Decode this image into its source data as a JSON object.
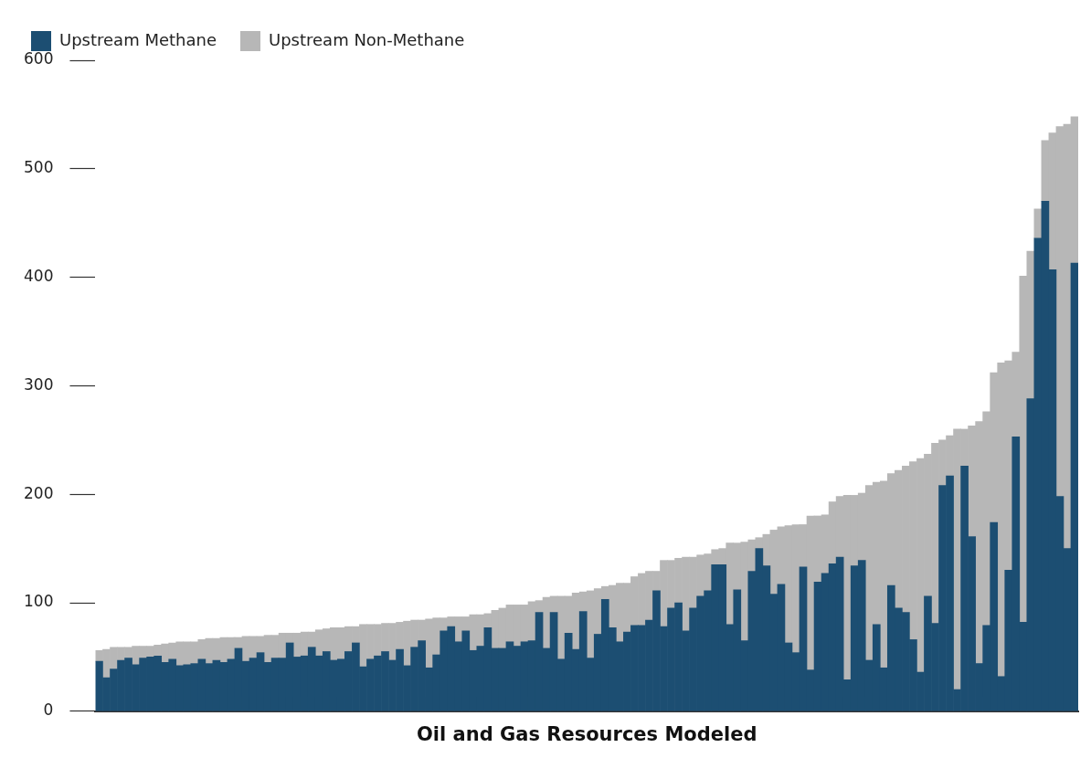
{
  "chart_data": {
    "type": "bar",
    "stacked": true,
    "xlabel": "Oil and Gas Resources Modeled",
    "ylim": [
      0,
      600
    ],
    "yticks": [
      0,
      100,
      200,
      300,
      400,
      500,
      600
    ],
    "grid": false,
    "legend": "top left",
    "tick_labels": "y",
    "categories": [
      null,
      null,
      null,
      null,
      null,
      null,
      null,
      null,
      null,
      null,
      null,
      null,
      null,
      null,
      null,
      null,
      null,
      null,
      null,
      null,
      null,
      null,
      null,
      null,
      null,
      null,
      null,
      null,
      null,
      null,
      null,
      null,
      null,
      null,
      null,
      null,
      null,
      null,
      null,
      null,
      null,
      null,
      null,
      null,
      null,
      null,
      null,
      null,
      null,
      null,
      null,
      null,
      null,
      null,
      null,
      null,
      null,
      null,
      null,
      null,
      null,
      null,
      null,
      null,
      null,
      null,
      null,
      null,
      null,
      null,
      null,
      null,
      null,
      null,
      null,
      null,
      null,
      null,
      null,
      null,
      null,
      null,
      null,
      null,
      null,
      null,
      null,
      null,
      null,
      null,
      null,
      null,
      null,
      null,
      null,
      null,
      null,
      null,
      null,
      null,
      null,
      null,
      null,
      null,
      null,
      null,
      null,
      null,
      null,
      null,
      null,
      null,
      null,
      null,
      null,
      null,
      null,
      null,
      null,
      null,
      null,
      null,
      null,
      null,
      null,
      null,
      null,
      null,
      null,
      null,
      null,
      null,
      null,
      null
    ],
    "series": [
      {
        "name": "Upstream Methane",
        "color": "#1c4e72",
        "values": [
          46,
          31,
          39,
          47,
          49,
          43,
          49,
          50,
          51,
          45,
          48,
          42,
          43,
          44,
          48,
          44,
          47,
          45,
          48,
          58,
          46,
          49,
          54,
          45,
          49,
          49,
          63,
          50,
          51,
          59,
          51,
          55,
          47,
          48,
          55,
          63,
          41,
          48,
          51,
          55,
          47,
          57,
          42,
          59,
          65,
          40,
          52,
          74,
          78,
          64,
          74,
          56,
          60,
          77,
          58,
          58,
          64,
          60,
          64,
          65,
          91,
          58,
          91,
          48,
          72,
          57,
          92,
          49,
          71,
          103,
          77,
          64,
          73,
          79,
          79,
          84,
          111,
          78,
          95,
          100,
          74,
          95,
          106,
          111,
          135,
          135,
          80,
          112,
          65,
          129,
          150,
          134,
          108,
          117,
          63,
          54,
          133,
          38,
          119,
          127,
          136,
          142,
          29,
          134,
          139,
          47,
          80,
          40,
          116,
          95,
          91,
          66,
          36,
          106,
          81,
          208,
          217,
          20,
          226,
          161,
          44,
          79,
          174,
          32,
          130,
          253,
          82,
          288,
          436,
          470,
          407,
          198,
          150,
          413
        ]
      },
      {
        "name": "Upstream Non-Methane",
        "color": "#b7b7b7",
        "values": [
          10,
          26,
          20,
          12,
          10,
          17,
          11,
          10,
          10,
          17,
          15,
          22,
          21,
          20,
          18,
          23,
          20,
          23,
          20,
          10,
          23,
          20,
          15,
          25,
          21,
          23,
          9,
          22,
          22,
          14,
          24,
          21,
          30,
          29,
          23,
          15,
          39,
          32,
          29,
          26,
          34,
          25,
          41,
          25,
          19,
          45,
          34,
          12,
          9,
          23,
          13,
          33,
          29,
          13,
          35,
          37,
          34,
          38,
          34,
          36,
          11,
          47,
          15,
          58,
          34,
          52,
          18,
          62,
          42,
          12,
          39,
          54,
          45,
          45,
          48,
          45,
          18,
          61,
          44,
          41,
          68,
          47,
          38,
          34,
          14,
          15,
          75,
          43,
          91,
          29,
          10,
          29,
          59,
          53,
          108,
          118,
          39,
          142,
          61,
          54,
          57,
          56,
          170,
          65,
          62,
          161,
          131,
          172,
          103,
          127,
          135,
          164,
          197,
          131,
          166,
          42,
          37,
          240,
          34,
          102,
          223,
          197,
          138,
          289,
          193,
          78,
          319,
          136,
          27,
          56,
          126,
          341,
          391,
          135
        ]
      }
    ]
  }
}
